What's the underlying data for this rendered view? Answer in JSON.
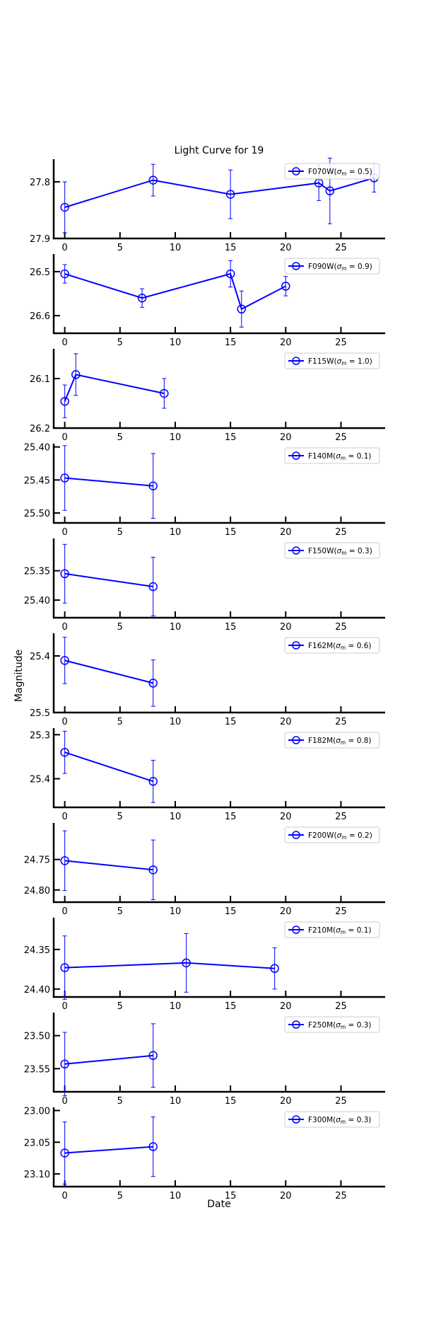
{
  "chart_data": {
    "type": "line",
    "title": "Light Curve for 19",
    "xlabel": "Date",
    "ylabel": "Magnitude",
    "xlim": [
      -1,
      29
    ],
    "xticks": [
      0,
      5,
      10,
      15,
      20,
      25
    ],
    "grid": false,
    "legend_position": "top-right",
    "line_color": "#0000ff",
    "marker": "open-circle",
    "y_inverted": true,
    "panels": [
      {
        "name": "F070W",
        "legend": "F070W(σ_m = 0.5)",
        "legend_filter": "F070W",
        "legend_sigma": "σ",
        "legend_sub": "m",
        "legend_rest": " = 0.5)",
        "ylim": [
          27.9,
          27.76
        ],
        "yticks": [
          27.8,
          27.9
        ],
        "ytick_labels": [
          "27.8",
          "27.9"
        ],
        "x": [
          0,
          8,
          15,
          23,
          24,
          28
        ],
        "y": [
          27.845,
          27.797,
          27.822,
          27.802,
          27.816,
          27.793
        ],
        "err": [
          0.045,
          0.028,
          0.043,
          0.031,
          0.058,
          0.025
        ]
      },
      {
        "name": "F090W",
        "legend": "F090W(σ_m = 0.9)",
        "legend_filter": "F090W",
        "legend_sigma": "σ",
        "legend_sub": "m",
        "legend_rest": " = 0.9)",
        "ylim": [
          26.64,
          26.46
        ],
        "yticks": [
          26.5,
          26.6
        ],
        "ytick_labels": [
          "26.5",
          "26.6"
        ],
        "x": [
          0,
          7,
          15,
          16,
          20
        ],
        "y": [
          26.505,
          26.56,
          26.505,
          26.585,
          26.533
        ],
        "err": [
          0.021,
          0.021,
          0.03,
          0.041,
          0.022
        ]
      },
      {
        "name": "F115W",
        "legend": "F115W(σ_m = 1.0)",
        "legend_filter": "F115W",
        "legend_sigma": "σ",
        "legend_sub": "m",
        "legend_rest": " = 1.0)",
        "ylim": [
          26.2,
          26.04
        ],
        "yticks": [
          26.1,
          26.2
        ],
        "ytick_labels": [
          "26.1",
          "26.2"
        ],
        "x": [
          0,
          1,
          9
        ],
        "y": [
          26.146,
          26.092,
          26.13
        ],
        "err": [
          0.033,
          0.042,
          0.03
        ]
      },
      {
        "name": "F140M",
        "legend": "F140M(σ_m = 0.1)",
        "legend_filter": "F140M",
        "legend_sigma": "σ",
        "legend_sub": "m",
        "legend_rest": " = 0.1)",
        "ylim": [
          25.515,
          25.395
        ],
        "yticks": [
          25.4,
          25.45,
          25.5
        ],
        "ytick_labels": [
          "25.40",
          "25.45",
          "25.50"
        ],
        "x": [
          0,
          8
        ],
        "y": [
          25.447,
          25.459
        ],
        "err": [
          0.049,
          0.049
        ]
      },
      {
        "name": "F150W",
        "legend": "F150W(σ_m = 0.3)",
        "legend_filter": "F150W",
        "legend_sigma": "σ",
        "legend_sub": "m",
        "legend_rest": " = 0.3)",
        "ylim": [
          25.43,
          25.295
        ],
        "yticks": [
          25.35,
          25.4
        ],
        "ytick_labels": [
          "25.35",
          "25.40"
        ],
        "x": [
          0,
          8
        ],
        "y": [
          25.355,
          25.377
        ],
        "err": [
          0.05,
          0.05
        ]
      },
      {
        "name": "F162M",
        "legend": "F162M(σ_m = 0.6)",
        "legend_filter": "F162M",
        "legend_sigma": "σ",
        "legend_sub": "m",
        "legend_rest": " = 0.6)",
        "ylim": [
          25.5,
          25.36
        ],
        "yticks": [
          25.4,
          25.5
        ],
        "ytick_labels": [
          "25.4",
          "25.5"
        ],
        "x": [
          0,
          8
        ],
        "y": [
          25.408,
          25.448
        ],
        "err": [
          0.041,
          0.041
        ]
      },
      {
        "name": "F182M",
        "legend": "F182M(σ_m = 0.8)",
        "legend_filter": "F182M",
        "legend_sigma": "σ",
        "legend_sub": "m",
        "legend_rest": " = 0.8)",
        "ylim": [
          25.465,
          25.285
        ],
        "yticks": [
          25.3,
          25.4
        ],
        "ytick_labels": [
          "25.3",
          "25.4"
        ],
        "x": [
          0,
          8
        ],
        "y": [
          25.34,
          25.406
        ],
        "err": [
          0.048,
          0.048
        ]
      },
      {
        "name": "F200W",
        "legend": "F200W(σ_m = 0.2)",
        "legend_filter": "F200W",
        "legend_sigma": "σ",
        "legend_sub": "m",
        "legend_rest": " = 0.2)",
        "ylim": [
          24.82,
          24.69
        ],
        "yticks": [
          24.75,
          24.8
        ],
        "ytick_labels": [
          "24.75",
          "24.80"
        ],
        "x": [
          0,
          8
        ],
        "y": [
          24.752,
          24.767
        ],
        "err": [
          0.049,
          0.049
        ]
      },
      {
        "name": "F210M",
        "legend": "F210M(σ_m = 0.1)",
        "legend_filter": "F210M",
        "legend_sigma": "σ",
        "legend_sub": "m",
        "legend_rest": " = 0.1)",
        "ylim": [
          24.41,
          24.31
        ],
        "yticks": [
          24.35,
          24.4
        ],
        "ytick_labels": [
          "24.35",
          "24.40"
        ],
        "x": [
          0,
          11,
          19
        ],
        "y": [
          24.373,
          24.367,
          24.374
        ],
        "err": [
          0.04,
          0.037,
          0.026
        ]
      },
      {
        "name": "F250M",
        "legend": "F250M(σ_m = 0.3)",
        "legend_filter": "F250M",
        "legend_sigma": "σ",
        "legend_sub": "m",
        "legend_rest": " = 0.3)",
        "ylim": [
          23.585,
          23.465
        ],
        "yticks": [
          23.5,
          23.55
        ],
        "ytick_labels": [
          "23.50",
          "23.55"
        ],
        "x": [
          0,
          8
        ],
        "y": [
          23.543,
          23.53
        ],
        "err": [
          0.048,
          0.048
        ]
      },
      {
        "name": "F300M",
        "legend": "F300M(σ_m = 0.3)",
        "legend_filter": "F300M",
        "legend_sigma": "σ",
        "legend_sub": "m",
        "legend_rest": " = 0.3)",
        "ylim": [
          23.12,
          22.995
        ],
        "yticks": [
          23.0,
          23.05,
          23.1
        ],
        "ytick_labels": [
          "23.00",
          "23.05",
          "23.10"
        ],
        "x": [
          0,
          8
        ],
        "y": [
          23.067,
          23.057
        ],
        "err": [
          0.049,
          0.047
        ]
      }
    ]
  }
}
